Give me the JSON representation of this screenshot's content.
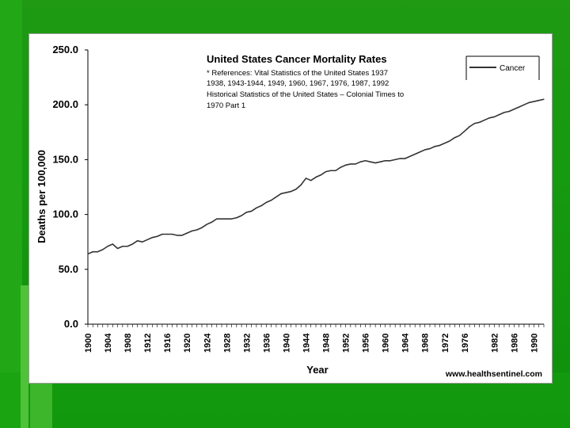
{
  "chart_data": {
    "type": "line",
    "title": "United States Cancer Mortality Rates",
    "notes": [
      "* References: Vital Statistics of the United States 1937",
      "1938, 1943-1944, 1949, 1960, 1967, 1976, 1987, 1992",
      "Historical Statistics of the United States – Colonial Times to",
      "1970 Part 1"
    ],
    "xlabel": "Year",
    "ylabel": "Deaths per 100,000",
    "ylim": [
      0,
      250
    ],
    "yticks": [
      "0.0",
      "50.0",
      "100.0",
      "150.0",
      "200.0",
      "250.0"
    ],
    "xlim": [
      1900,
      1992
    ],
    "xticks": [
      "1900",
      "1904",
      "1908",
      "1912",
      "1916",
      "1920",
      "1924",
      "1928",
      "1932",
      "1936",
      "1940",
      "1944",
      "1948",
      "1952",
      "1956",
      "1960",
      "1964",
      "1968",
      "1972",
      "1976",
      "1982",
      "1986",
      "1990"
    ],
    "grid": false,
    "legend_position": "top-right",
    "source": "www.healthsentinel.com",
    "series": [
      {
        "name": "Cancer",
        "color": "#333333",
        "points": [
          [
            1900,
            64
          ],
          [
            1901,
            66
          ],
          [
            1902,
            66
          ],
          [
            1903,
            68
          ],
          [
            1904,
            71
          ],
          [
            1905,
            73
          ],
          [
            1906,
            69
          ],
          [
            1907,
            71
          ],
          [
            1908,
            71
          ],
          [
            1909,
            73
          ],
          [
            1910,
            76
          ],
          [
            1911,
            75
          ],
          [
            1912,
            77
          ],
          [
            1913,
            79
          ],
          [
            1914,
            80
          ],
          [
            1915,
            82
          ],
          [
            1916,
            82
          ],
          [
            1917,
            82
          ],
          [
            1918,
            81
          ],
          [
            1919,
            81
          ],
          [
            1920,
            83
          ],
          [
            1921,
            85
          ],
          [
            1922,
            86
          ],
          [
            1923,
            88
          ],
          [
            1924,
            91
          ],
          [
            1925,
            93
          ],
          [
            1926,
            96
          ],
          [
            1927,
            96
          ],
          [
            1928,
            96
          ],
          [
            1929,
            96
          ],
          [
            1930,
            97
          ],
          [
            1931,
            99
          ],
          [
            1932,
            102
          ],
          [
            1933,
            103
          ],
          [
            1934,
            106
          ],
          [
            1935,
            108
          ],
          [
            1936,
            111
          ],
          [
            1937,
            113
          ],
          [
            1938,
            116
          ],
          [
            1939,
            119
          ],
          [
            1940,
            120
          ],
          [
            1941,
            121
          ],
          [
            1942,
            123
          ],
          [
            1943,
            127
          ],
          [
            1944,
            133
          ],
          [
            1945,
            131
          ],
          [
            1946,
            134
          ],
          [
            1947,
            136
          ],
          [
            1948,
            139
          ],
          [
            1949,
            140
          ],
          [
            1950,
            140
          ],
          [
            1951,
            143
          ],
          [
            1952,
            145
          ],
          [
            1953,
            146
          ],
          [
            1954,
            146
          ],
          [
            1955,
            148
          ],
          [
            1956,
            149
          ],
          [
            1957,
            148
          ],
          [
            1958,
            147
          ],
          [
            1959,
            148
          ],
          [
            1960,
            149
          ],
          [
            1961,
            149
          ],
          [
            1962,
            150
          ],
          [
            1963,
            151
          ],
          [
            1964,
            151
          ],
          [
            1965,
            153
          ],
          [
            1966,
            155
          ],
          [
            1967,
            157
          ],
          [
            1968,
            159
          ],
          [
            1969,
            160
          ],
          [
            1970,
            162
          ],
          [
            1971,
            163
          ],
          [
            1972,
            165
          ],
          [
            1973,
            167
          ],
          [
            1974,
            170
          ],
          [
            1975,
            172
          ],
          [
            1976,
            176
          ],
          [
            1977,
            180
          ],
          [
            1978,
            183
          ],
          [
            1979,
            184
          ],
          [
            1980,
            186
          ],
          [
            1981,
            188
          ],
          [
            1982,
            189
          ],
          [
            1983,
            191
          ],
          [
            1984,
            193
          ],
          [
            1985,
            194
          ],
          [
            1986,
            196
          ],
          [
            1987,
            198
          ],
          [
            1988,
            200
          ],
          [
            1989,
            202
          ],
          [
            1990,
            203
          ],
          [
            1991,
            204
          ],
          [
            1992,
            205
          ]
        ]
      }
    ]
  }
}
